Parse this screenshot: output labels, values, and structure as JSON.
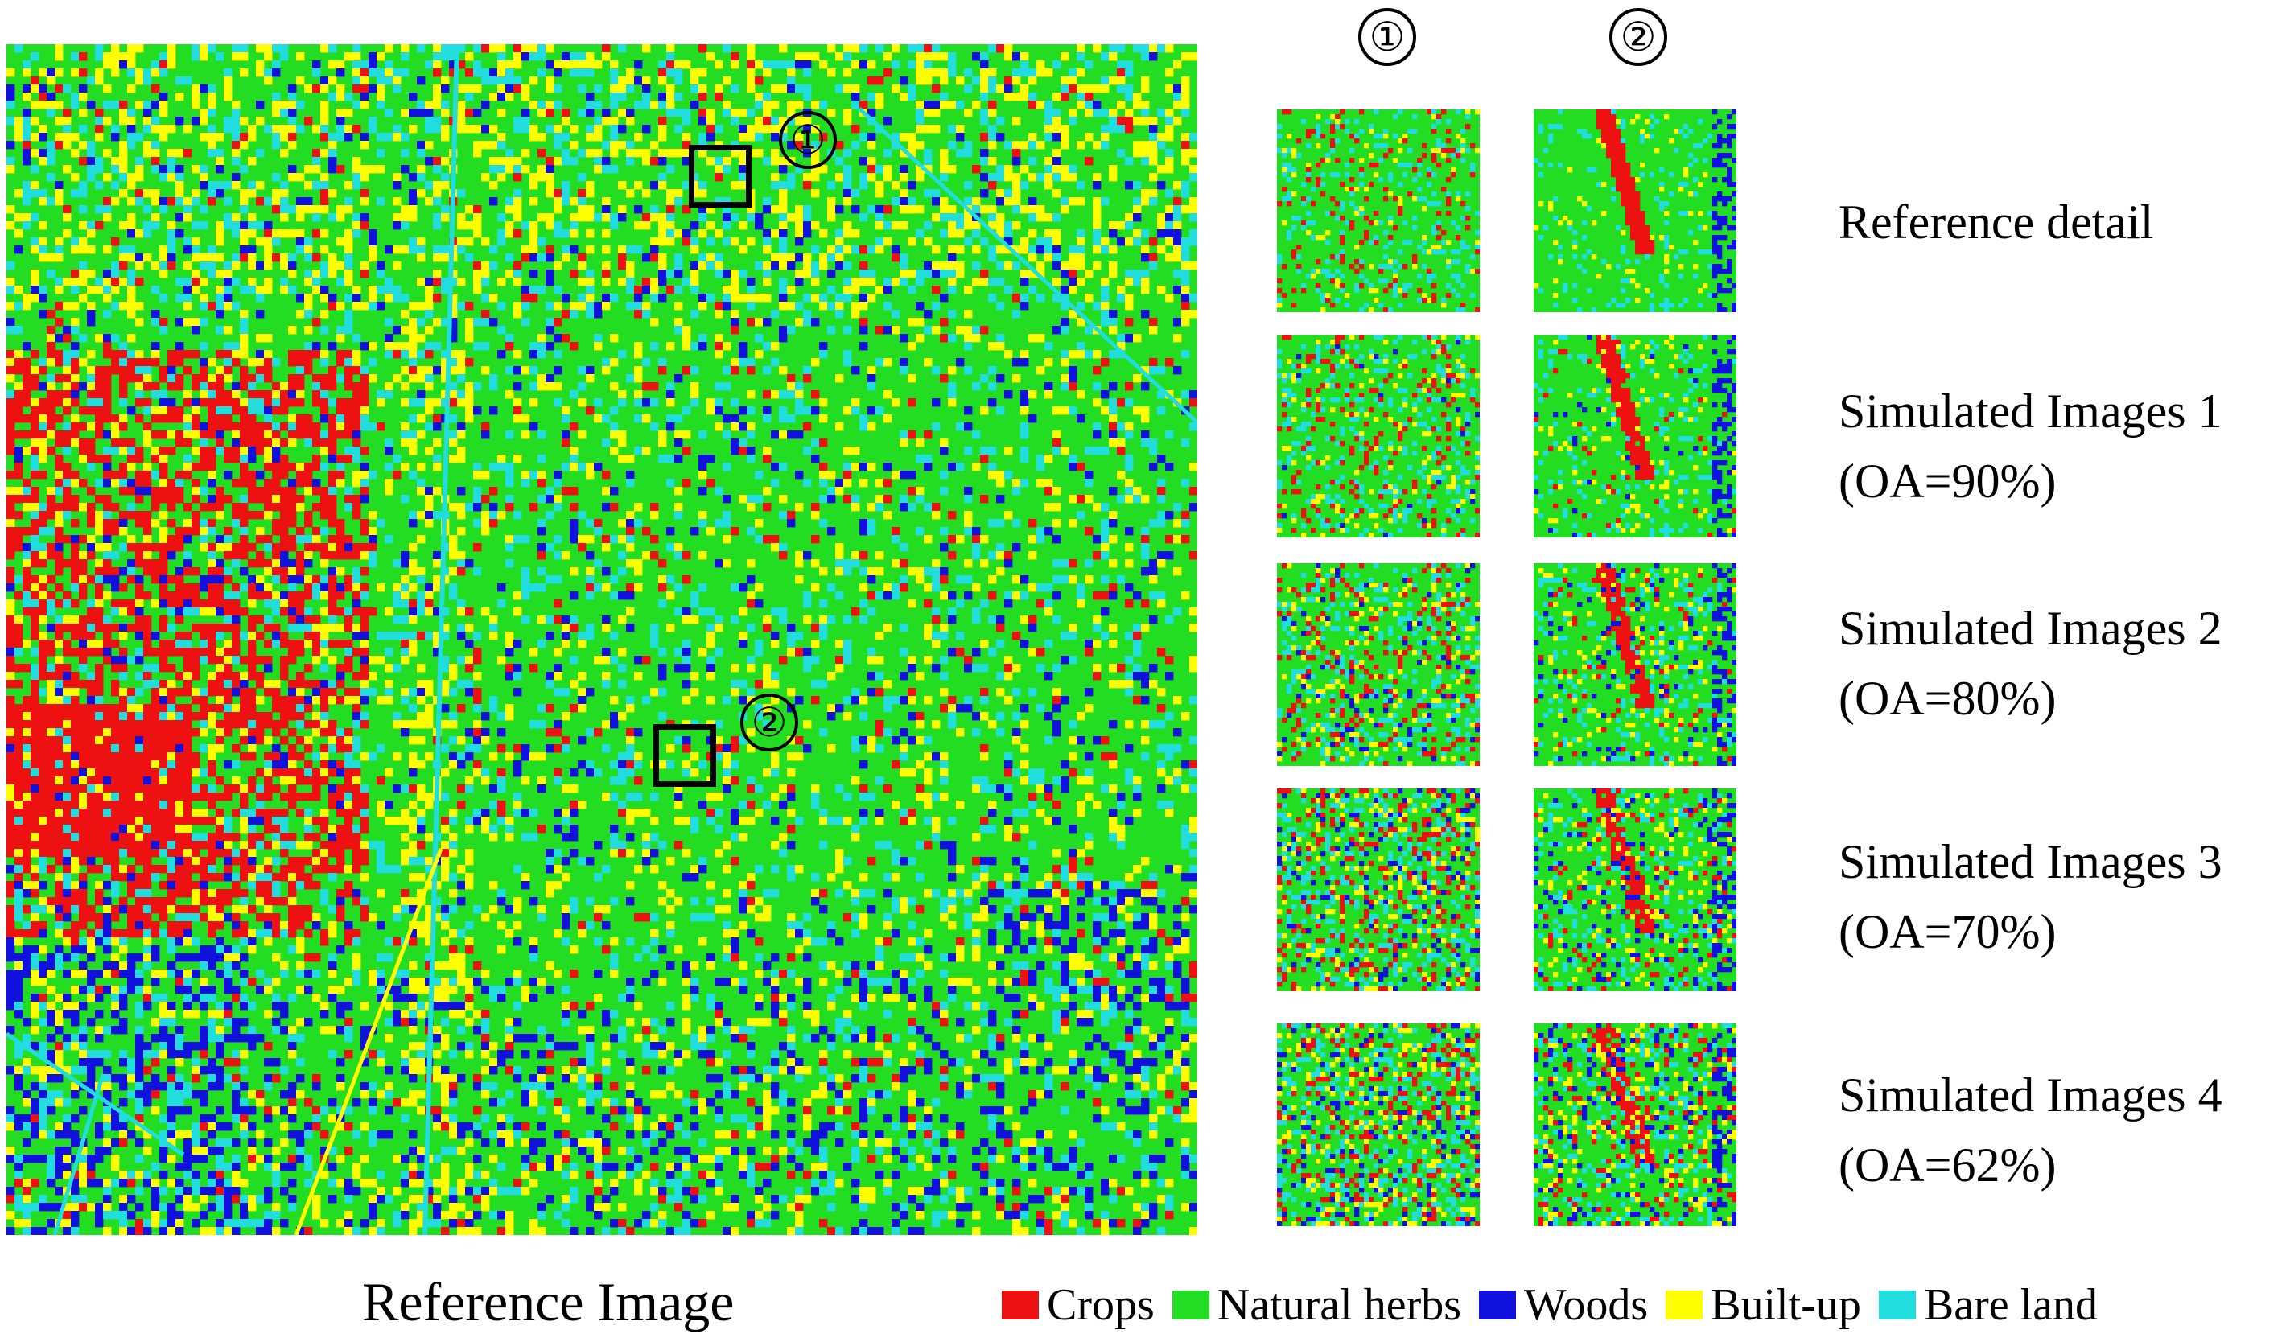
{
  "columns": [
    {
      "label": "①"
    },
    {
      "label": "②"
    }
  ],
  "regions": [
    {
      "label": "①"
    },
    {
      "label": "②"
    }
  ],
  "rows": [
    {
      "line1": "Reference detail",
      "line2": ""
    },
    {
      "line1": "Simulated Images 1",
      "line2": "(OA=90%)"
    },
    {
      "line1": "Simulated Images 2",
      "line2": "(OA=80%)"
    },
    {
      "line1": "Simulated Images 3",
      "line2": "(OA=70%)"
    },
    {
      "line1": "Simulated Images 4",
      "line2": "(OA=62%)"
    }
  ],
  "reference_title": "Reference Image",
  "legend": [
    {
      "label": "Crops",
      "color": "#ee1111"
    },
    {
      "label": "Natural herbs",
      "color": "#22dd22"
    },
    {
      "label": "Woods",
      "color": "#1111dd"
    },
    {
      "label": "Built-up",
      "color": "#ffff00"
    },
    {
      "label": "Bare land",
      "color": "#22dddd"
    }
  ],
  "overall_accuracy_percent": [
    90,
    80,
    70,
    62
  ]
}
